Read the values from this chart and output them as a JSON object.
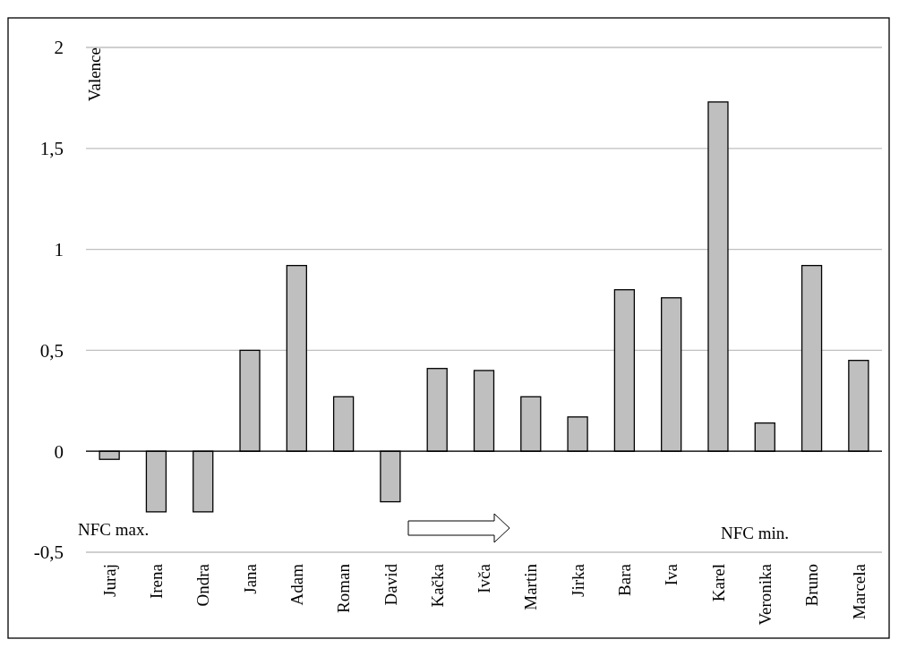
{
  "chart_data": {
    "type": "bar",
    "ylabel": "Valence",
    "categories": [
      "Juraj",
      "Irena",
      "Ondra",
      "Jana",
      "Adam",
      "Roman",
      "David",
      "Kačka",
      "Ivča",
      "Martin",
      "Jirka",
      "Bara",
      "Iva",
      "Karel",
      "Veronika",
      "Bruno",
      "Marcela"
    ],
    "values": [
      -0.04,
      -0.3,
      -0.3,
      0.5,
      0.92,
      0.27,
      -0.25,
      0.41,
      0.4,
      0.27,
      0.17,
      0.8,
      0.76,
      1.73,
      0.14,
      0.92,
      0.45
    ],
    "color": "#bfbfbf",
    "ylim": [
      -0.5,
      2
    ],
    "yticks": [
      {
        "value": -0.5,
        "label": "-0,5"
      },
      0,
      {
        "value": 0.5,
        "label": "0,5"
      },
      1,
      {
        "value": 1.5,
        "label": "1,5"
      },
      2
    ],
    "grid": "y",
    "annotations": [
      "NFC max.",
      "NFC min."
    ]
  }
}
